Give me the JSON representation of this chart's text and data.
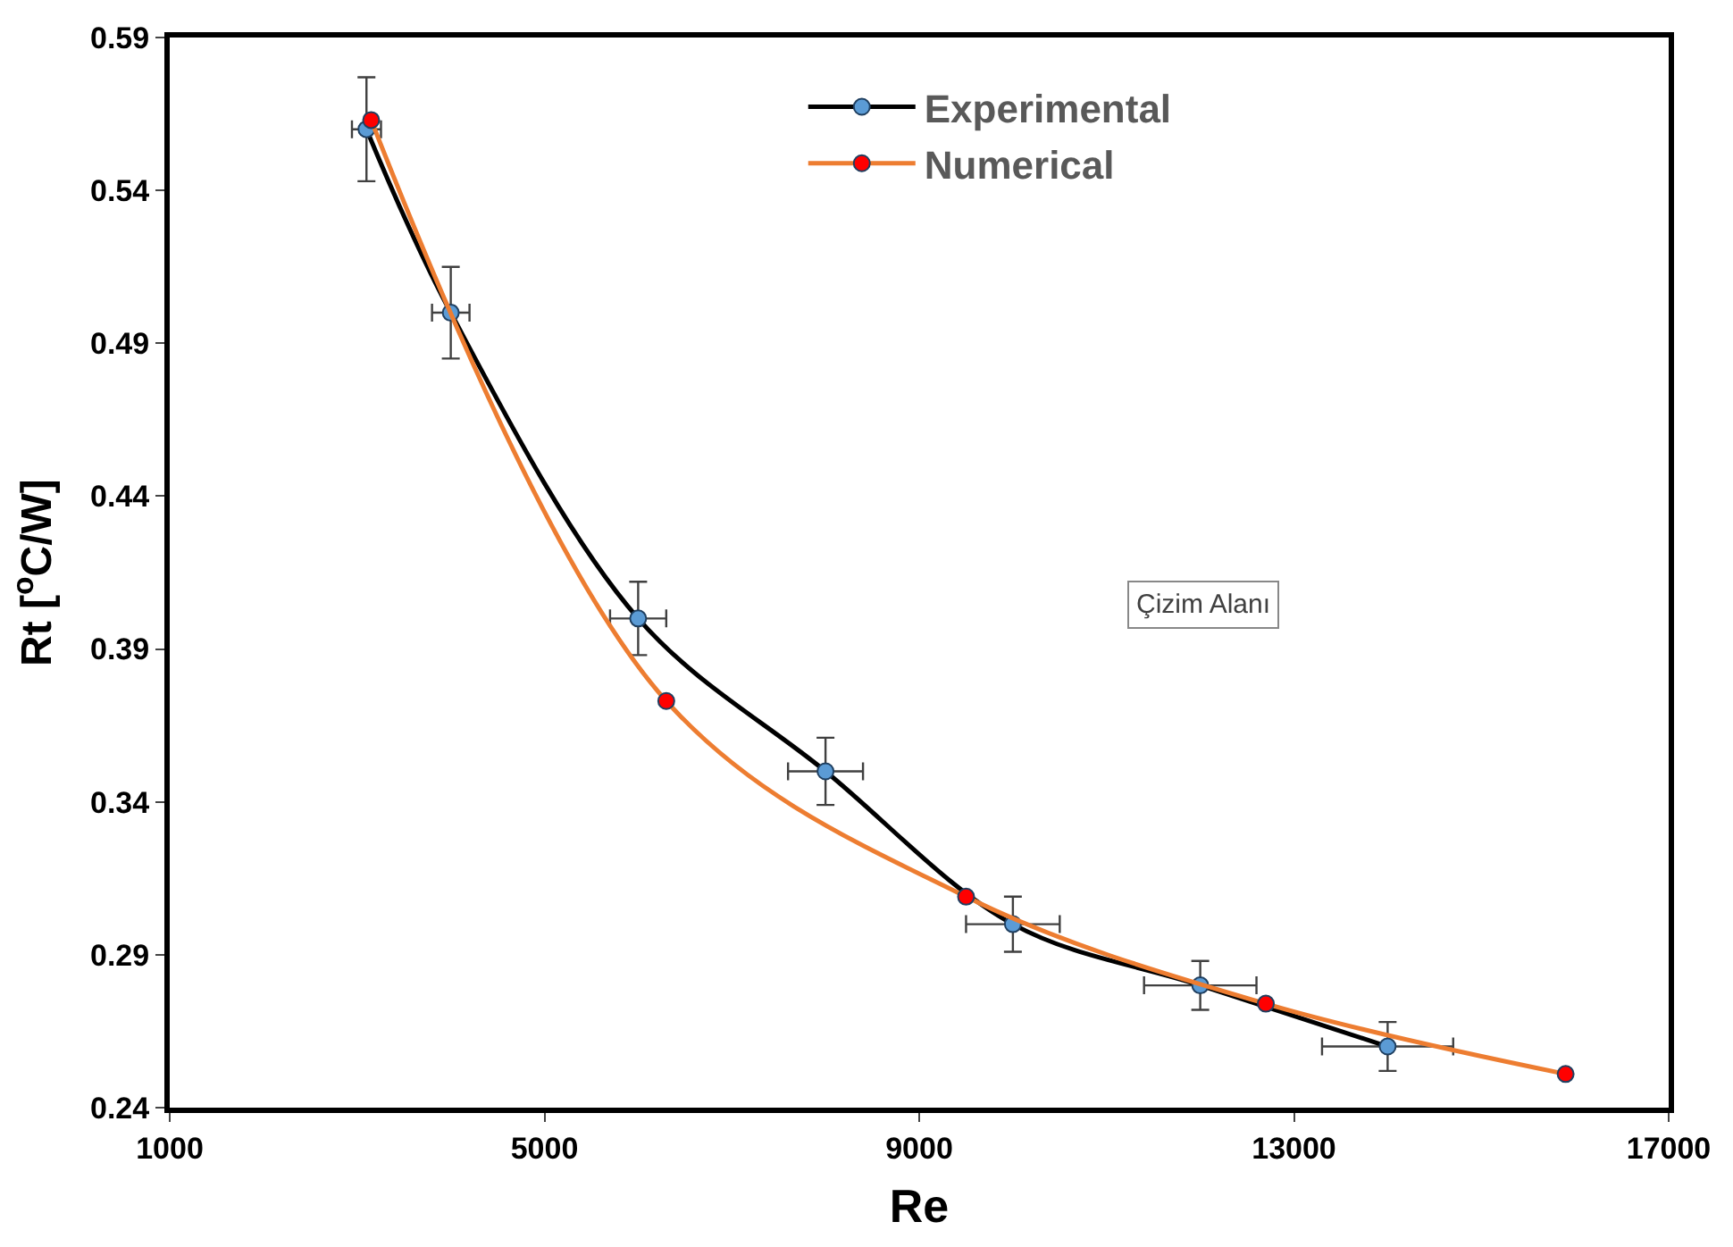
{
  "chart_data": {
    "type": "line",
    "xlabel": "Re",
    "ylabel": "Rt [$^{o}$C/W]",
    "xlim": [
      1000,
      17000
    ],
    "xticks": [
      1000,
      5000,
      9000,
      13000,
      17000
    ],
    "ylim": [
      0.24,
      0.59
    ],
    "yticks": [
      0.24,
      0.29,
      0.34,
      0.39,
      0.44,
      0.49,
      0.54,
      0.59
    ],
    "legend": "top right",
    "marker": "circle",
    "line_style": "solid",
    "annotations": [
      "Çizim Alanı"
    ],
    "series": [
      {
        "name": "Experimental",
        "color": "#000000",
        "colors": [
          "#5b9bd5",
          "#5b9bd5",
          "#5b9bd5",
          "#5b9bd5",
          "#5b9bd5",
          "#5b9bd5",
          "#5b9bd5"
        ],
        "x": [
          3100,
          4000,
          6000,
          8000,
          10000,
          12000,
          14000
        ],
        "values": [
          0.56,
          0.5,
          0.4,
          0.35,
          0.3,
          0.28,
          0.26
        ],
        "errors": [
          0.017,
          0.015,
          0.012,
          0.011,
          0.009,
          0.008,
          0.008
        ],
        "xerrors": [
          155,
          200,
          300,
          400,
          500,
          600,
          700
        ]
      },
      {
        "name": "Numerical",
        "color": "#ed7d31",
        "colors": [
          "#ff0000",
          "#ff0000",
          "#ff0000",
          "#ff0000",
          "#ff0000"
        ],
        "x": [
          3150,
          6300,
          9500,
          12700,
          15900
        ],
        "values": [
          0.563,
          0.373,
          0.309,
          0.274,
          0.251
        ]
      }
    ]
  }
}
